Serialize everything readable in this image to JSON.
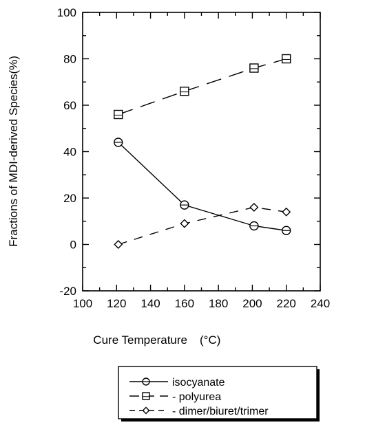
{
  "chart_data": {
    "type": "line",
    "title": "",
    "xlabel": "Cure Temperature",
    "xlabel_unit": "(°C)",
    "ylabel": "Fractions of MDI-derived Species(%)",
    "xlim": [
      100,
      240
    ],
    "ylim": [
      -20,
      100
    ],
    "x_ticks": [
      100,
      120,
      140,
      160,
      180,
      200,
      220,
      240
    ],
    "y_ticks": [
      -20,
      0,
      20,
      40,
      60,
      80,
      100
    ],
    "grid": false,
    "legend_position": "bottom-center",
    "series": [
      {
        "name": "isocyanate",
        "marker": "circle",
        "line_style": "solid",
        "x": [
          121,
          160,
          201,
          220
        ],
        "y": [
          44,
          17,
          8,
          6
        ]
      },
      {
        "name": "polyurea",
        "marker": "square",
        "line_style": "long-dash",
        "x": [
          121,
          160,
          201,
          220
        ],
        "y": [
          56,
          66,
          76,
          80
        ]
      },
      {
        "name": "dimer/biuret/trimer",
        "marker": "diamond",
        "line_style": "dash",
        "x": [
          121,
          160,
          201,
          220
        ],
        "y": [
          0,
          9,
          16,
          14
        ]
      }
    ],
    "legend_labels": [
      "isocyanate",
      "- polyurea",
      "- dimer/biuret/trimer"
    ]
  }
}
